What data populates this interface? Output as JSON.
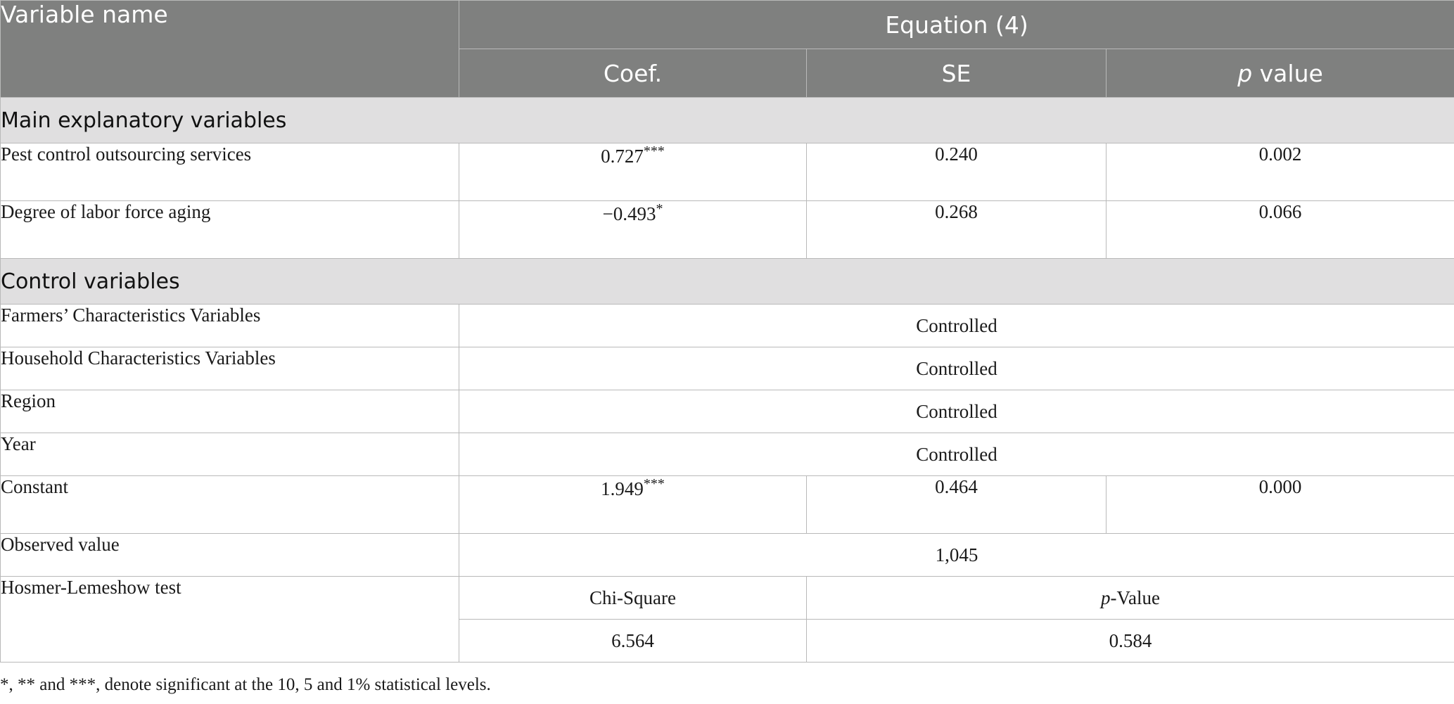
{
  "header": {
    "variable_name": "Variable name",
    "equation": "Equation (4)",
    "coef": "Coef.",
    "se": "SE",
    "p_italic": "p",
    "p_rest": " value"
  },
  "sections": {
    "main": "Main explanatory variables",
    "control": "Control variables"
  },
  "main_rows": [
    {
      "label": "Pest control outsourcing services",
      "coef": "0.727",
      "stars": "***",
      "se": "0.240",
      "p": "0.002"
    },
    {
      "label": "Degree of labor force aging",
      "coef": "−0.493",
      "stars": "*",
      "se": "0.268",
      "p": "0.066"
    }
  ],
  "control_rows": [
    {
      "label": "Farmers’ Characteristics Variables",
      "value": "Controlled"
    },
    {
      "label": "Household Characteristics Variables",
      "value": "Controlled"
    },
    {
      "label": "Region",
      "value": "Controlled"
    },
    {
      "label": "Year",
      "value": "Controlled"
    }
  ],
  "constant": {
    "label": "Constant",
    "coef": "1.949",
    "stars": "***",
    "se": "0.464",
    "p": "0.000"
  },
  "observed": {
    "label": "Observed value",
    "value": "1,045"
  },
  "hosmer": {
    "label": "Hosmer-Lemeshow test",
    "chi_label": "Chi-Square",
    "p_italic": "p",
    "p_rest": "-Value",
    "chi_value": "6.564",
    "p_value": "0.584"
  },
  "footnote": "*, ** and ***, denote significant at the 10, 5 and 1% statistical levels."
}
